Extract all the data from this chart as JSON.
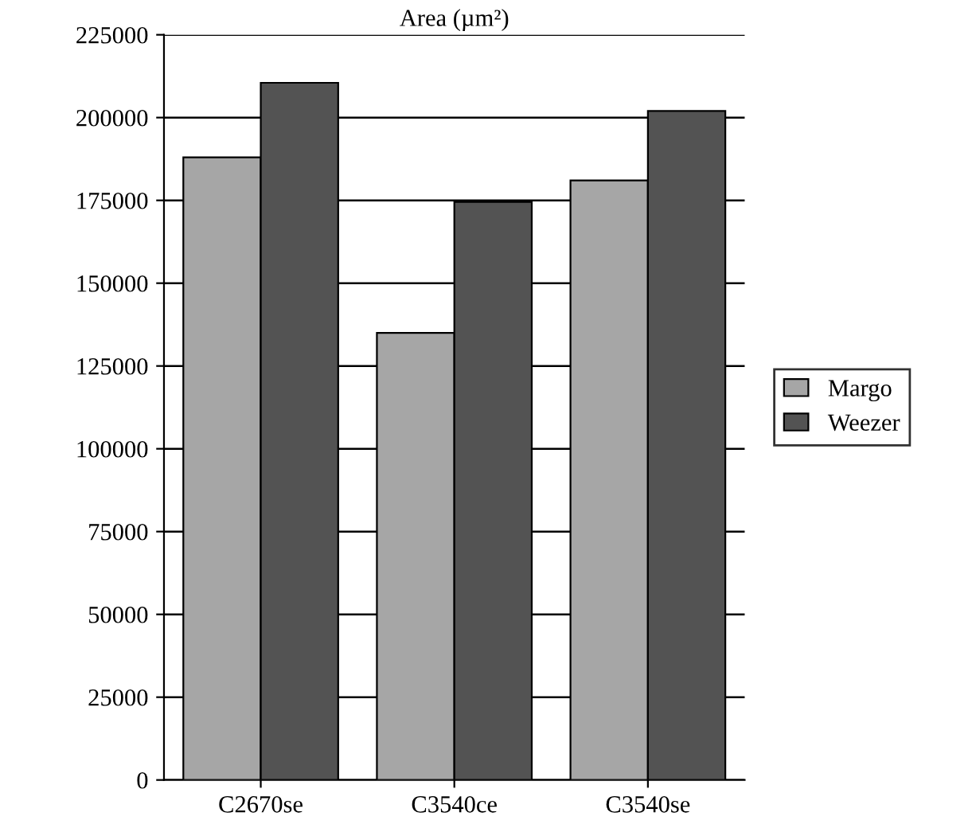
{
  "chart_data": {
    "type": "bar",
    "title": "Area (µm²)",
    "categories": [
      "C2670se",
      "C3540ce",
      "C3540se"
    ],
    "series": [
      {
        "name": "Margo",
        "color": "#a6a6a6",
        "values": [
          188000,
          135000,
          181000
        ]
      },
      {
        "name": "Weezer",
        "color": "#535353",
        "values": [
          210500,
          174500,
          202000
        ]
      }
    ],
    "ylim": [
      0,
      225000
    ],
    "yticks": [
      0,
      25000,
      50000,
      75000,
      100000,
      125000,
      150000,
      175000,
      200000,
      225000
    ],
    "grid": "y",
    "legend": "right"
  }
}
